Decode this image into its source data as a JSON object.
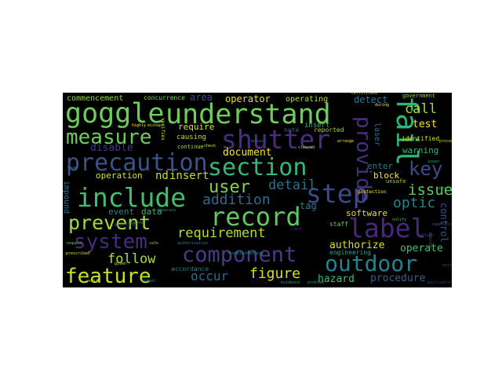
{
  "wordcloud": {
    "background": "#000000",
    "colormap": "viridis",
    "words": [
      {
        "text": "goggle",
        "color": "#6ccd5a"
      },
      {
        "text": "understand",
        "color": "#6ccd5a"
      },
      {
        "text": "fail",
        "color": "#2fb47c"
      },
      {
        "text": "shutter",
        "color": "#472f7d"
      },
      {
        "text": "measure",
        "color": "#6ccd5a"
      },
      {
        "text": "precaution",
        "color": "#3b528b"
      },
      {
        "text": "section",
        "color": "#35b779"
      },
      {
        "text": "provide",
        "color": "#472f7d"
      },
      {
        "text": "include",
        "color": "#42be71"
      },
      {
        "text": "step",
        "color": "#3e4a89"
      },
      {
        "text": "user",
        "color": "#7fd34e"
      },
      {
        "text": "addition",
        "color": "#31688e"
      },
      {
        "text": "record",
        "color": "#5ec962"
      },
      {
        "text": "label",
        "color": "#482878"
      },
      {
        "text": "prevent",
        "color": "#a5db36"
      },
      {
        "text": "system",
        "color": "#472c7a"
      },
      {
        "text": "requirement",
        "color": "#b5de2b"
      },
      {
        "text": "component",
        "color": "#433e85"
      },
      {
        "text": "outdoor",
        "color": "#26828e"
      },
      {
        "text": "feature",
        "color": "#c8e020"
      },
      {
        "text": "key",
        "color": "#3e4a89"
      },
      {
        "text": "issue",
        "color": "#5ec962"
      },
      {
        "text": "optic",
        "color": "#25848e"
      },
      {
        "text": "call",
        "color": "#a8db34"
      },
      {
        "text": "detail",
        "color": "#2c728e"
      },
      {
        "text": "nd",
        "color": "#c2df23"
      },
      {
        "text": "insert",
        "color": "#c2df23"
      },
      {
        "text": "figure",
        "color": "#d2e21b"
      },
      {
        "text": "follow",
        "color": "#addc30"
      },
      {
        "text": "occur",
        "color": "#31688e"
      },
      {
        "text": "hazard",
        "color": "#3fbc73"
      },
      {
        "text": "procedure",
        "color": "#355f8d"
      },
      {
        "text": "authorize",
        "color": "#d8e219"
      },
      {
        "text": "operate",
        "color": "#44bf70"
      },
      {
        "text": "document",
        "color": "#fde725"
      },
      {
        "text": "disable",
        "color": "#453781"
      },
      {
        "text": "operation",
        "color": "#d5e21a"
      },
      {
        "text": "event",
        "color": "#26828e"
      },
      {
        "text": "data",
        "color": "#3bbb75"
      },
      {
        "text": "software",
        "color": "#e5e419"
      },
      {
        "text": "tag",
        "color": "#287c8e"
      },
      {
        "text": "block",
        "color": "#fde725"
      },
      {
        "text": "enter",
        "color": "#2a788e"
      },
      {
        "text": "test",
        "color": "#fde725"
      },
      {
        "text": "warning",
        "color": "#35b779"
      },
      {
        "text": "area",
        "color": "#3e4a89"
      },
      {
        "text": "operator",
        "color": "#dfe318"
      },
      {
        "text": "operating",
        "color": "#addc30"
      },
      {
        "text": "commencement",
        "color": "#8fd744"
      },
      {
        "text": "concurrence",
        "color": "#7ad151"
      },
      {
        "text": "detect",
        "color": "#2c728e"
      },
      {
        "text": "government",
        "color": "#8fd744"
      },
      {
        "text": "require",
        "color": "#d8e219"
      },
      {
        "text": "causing",
        "color": "#bddf26"
      },
      {
        "text": "note",
        "color": "#31688e"
      },
      {
        "text": "reported",
        "color": "#9bd93c"
      },
      {
        "text": "identified",
        "color": "#d8e219"
      },
      {
        "text": "unsafe",
        "color": "#a0da39"
      },
      {
        "text": "accordance",
        "color": "#25848e"
      },
      {
        "text": "engineering",
        "color": "#22a884"
      },
      {
        "text": "staff",
        "color": "#6ccd5a"
      },
      {
        "text": "continue",
        "color": "#addc30"
      },
      {
        "text": "reporting",
        "color": "#3e4a89"
      },
      {
        "text": "impound",
        "color": "#2a788e"
      },
      {
        "text": "control",
        "color": "#3b528b"
      },
      {
        "text": "laser",
        "color": "#2c728e"
      },
      {
        "text": "mishaps",
        "color": "#b5de2b"
      },
      {
        "text": "verifies",
        "color": "#e5e419"
      },
      {
        "text": "certificate",
        "color": "#b5de2b"
      },
      {
        "text": "protection",
        "color": "#fde725"
      },
      {
        "text": "troubleshooting",
        "color": "#21918c"
      },
      {
        "text": "evidence",
        "color": "#20a386"
      },
      {
        "text": "results",
        "color": "#440154"
      },
      {
        "text": "highly",
        "color": "#fde725"
      },
      {
        "text": "prescribed",
        "color": "#d8e219"
      },
      {
        "text": "separate",
        "color": "#21918c"
      },
      {
        "text": "arrange",
        "color": "#fde725"
      },
      {
        "text": "during",
        "color": "#fde725"
      },
      {
        "text": "assurance",
        "color": "#22a884"
      },
      {
        "text": "supervisor",
        "color": "#3b528b"
      },
      {
        "text": "authorization",
        "color": "#2a788e"
      },
      {
        "text": "problem",
        "color": "#1f9e89"
      },
      {
        "text": "monitor",
        "color": "#2c728e"
      },
      {
        "text": "insert",
        "color": "#2fb47c"
      },
      {
        "text": "given",
        "color": "#d8e219"
      },
      {
        "text": "request",
        "color": "#6ccd5a"
      },
      {
        "text": "caution",
        "color": "#3e4a89"
      },
      {
        "text": "cleared",
        "color": "#addc30"
      },
      {
        "text": "signal",
        "color": "#21918c"
      },
      {
        "text": "proceed",
        "color": "#c2df23"
      },
      {
        "text": "applicable",
        "color": "#472c7a"
      },
      {
        "text": "ensure",
        "color": "#2fb47c"
      },
      {
        "text": "notify",
        "color": "#3fbc73"
      },
      {
        "text": "manual",
        "color": "#31688e"
      },
      {
        "text": "verify",
        "color": "#addc30"
      },
      {
        "text": "limit",
        "color": "#482878"
      },
      {
        "text": "safe",
        "color": "#7fd34e"
      },
      {
        "text": "unit",
        "color": "#3e4a89"
      },
      {
        "text": "check",
        "color": "#d8e219"
      },
      {
        "text": "power",
        "color": "#1f9e89"
      },
      {
        "text": "beam",
        "color": "#2a788e"
      }
    ]
  }
}
